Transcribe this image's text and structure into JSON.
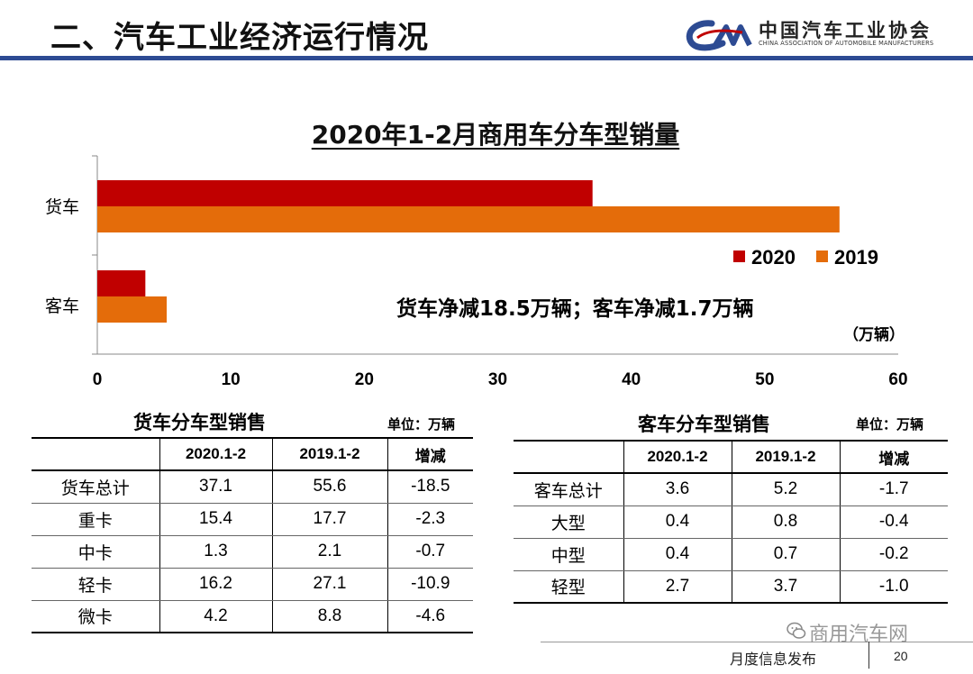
{
  "header": {
    "title": "二、汽车工业经济运行情况",
    "org_name": "中国汽车工业协会",
    "org_name_en": "CHINA ASSOCIATION OF AUTOMOBILE MANUFACTURERS",
    "logo_text": "CAM",
    "rule_color": "#2d4b93"
  },
  "chart_data": {
    "type": "bar",
    "orientation": "horizontal",
    "title": "2020年1-2月商用车分车型销量",
    "categories": [
      "货车",
      "客车"
    ],
    "series": [
      {
        "name": "2020",
        "color": "#c00000",
        "values": [
          37.1,
          3.6
        ]
      },
      {
        "name": "2019",
        "color": "#e46c0a",
        "values": [
          55.6,
          5.2
        ]
      }
    ],
    "xlim": [
      0,
      60
    ],
    "xticks": [
      0,
      10,
      20,
      30,
      40,
      50,
      60
    ],
    "unit": "（万辆）",
    "annotation": "货车净减18.5万辆；客车净减1.7万辆",
    "legend_position": "right",
    "grid": false
  },
  "truck_table": {
    "title": "货车分车型销售",
    "unit": "单位：万辆",
    "headers": [
      "",
      "2020.1-2",
      "2019.1-2",
      "增减"
    ],
    "rows": [
      [
        "货车总计",
        "37.1",
        "55.6",
        "-18.5"
      ],
      [
        "重卡",
        "15.4",
        "17.7",
        "-2.3"
      ],
      [
        "中卡",
        "1.3",
        "2.1",
        "-0.7"
      ],
      [
        "轻卡",
        "16.2",
        "27.1",
        "-10.9"
      ],
      [
        "微卡",
        "4.2",
        "8.8",
        "-4.6"
      ]
    ]
  },
  "bus_table": {
    "title": "客车分车型销售",
    "unit": "单位：万辆",
    "headers": [
      "",
      "2020.1-2",
      "2019.1-2",
      "增减"
    ],
    "rows": [
      [
        "客车总计",
        "3.6",
        "5.2",
        "-1.7"
      ],
      [
        "大型",
        "0.4",
        "0.8",
        "-0.4"
      ],
      [
        "中型",
        "0.4",
        "0.7",
        "-0.2"
      ],
      [
        "轻型",
        "2.7",
        "3.7",
        "-1.0"
      ]
    ]
  },
  "footer": {
    "watermark": "商用汽车网",
    "watermark_icon": "wechat-icon",
    "label": "月度信息发布",
    "page": "20"
  }
}
